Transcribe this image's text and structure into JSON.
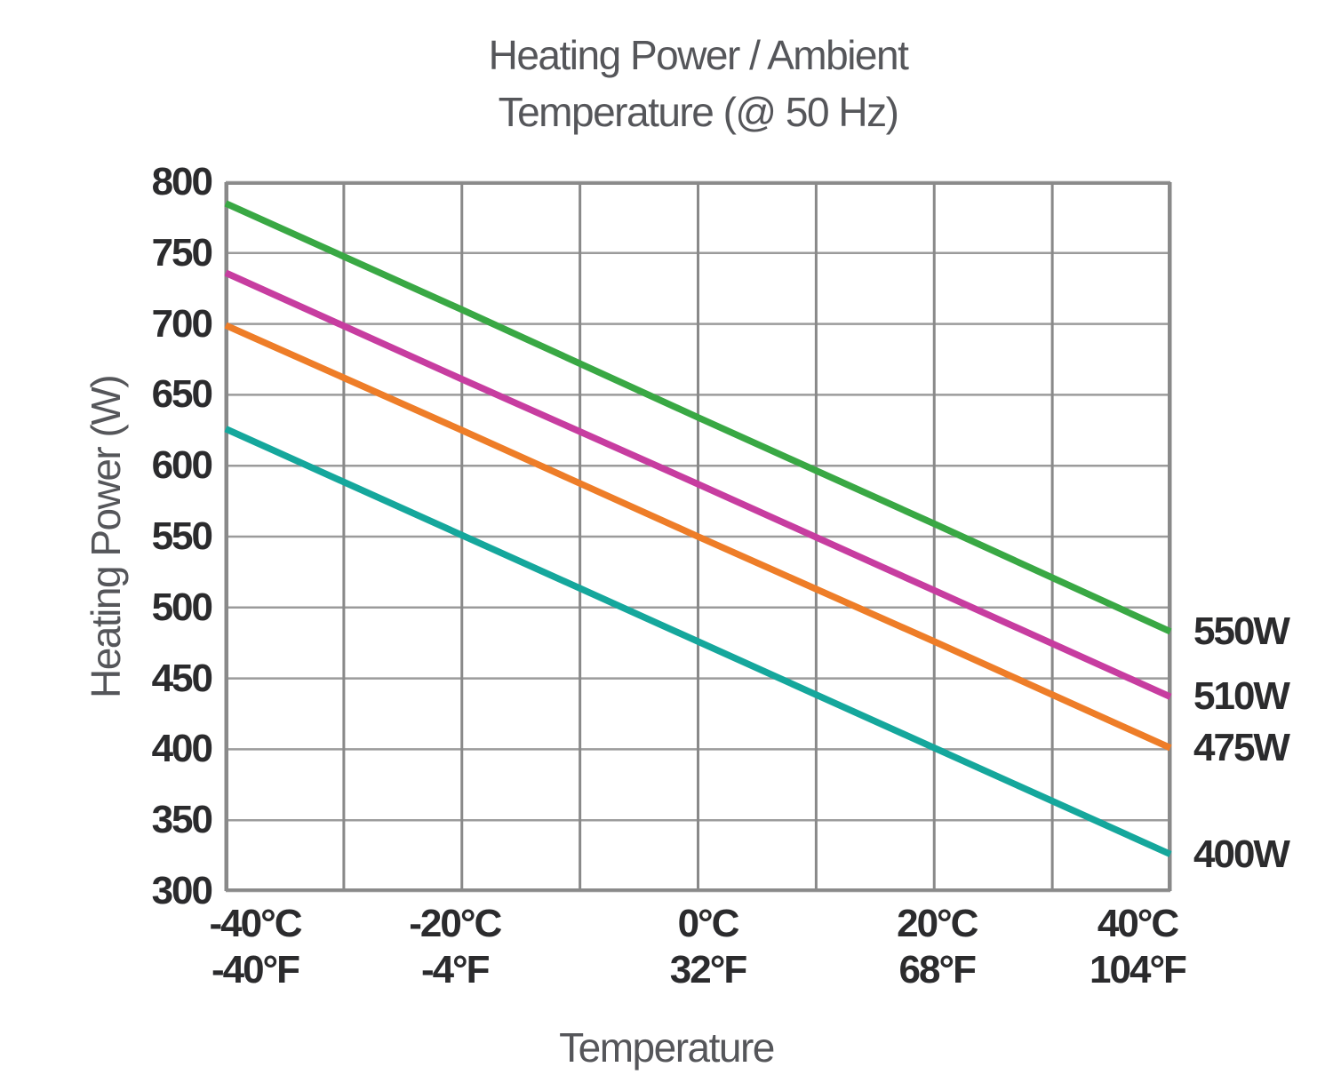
{
  "header": {
    "title_line1": "Heating Power / Ambient",
    "title_line2": "Temperature (@ 50 Hz)"
  },
  "chart_data": {
    "type": "line",
    "title": "Heating Power / Ambient Temperature (@ 50 Hz)",
    "xlabel": "Temperature",
    "ylabel": "Heating Power (W)",
    "xlim": [
      -40,
      40
    ],
    "ylim": [
      300,
      800
    ],
    "grid": true,
    "x_gridline_step_celsius": 10,
    "y_gridline_step_watts": 50,
    "x_ticks": [
      {
        "value": -40,
        "celsius": "-40°C",
        "fahrenheit": "-40°F"
      },
      {
        "value": -20,
        "celsius": "-20°C",
        "fahrenheit": "-4°F"
      },
      {
        "value": 0,
        "celsius": "0°C",
        "fahrenheit": "32°F"
      },
      {
        "value": 20,
        "celsius": "20°C",
        "fahrenheit": "68°F"
      },
      {
        "value": 40,
        "celsius": "40°C",
        "fahrenheit": "104°F"
      }
    ],
    "y_ticks": [
      800,
      750,
      700,
      650,
      600,
      550,
      500,
      450,
      400,
      350,
      300
    ],
    "x": [
      -40,
      -20,
      0,
      20,
      40
    ],
    "series": [
      {
        "name": "550W",
        "color": "#39a844",
        "values": [
          785,
          710,
          634,
          559,
          483
        ]
      },
      {
        "name": "510W",
        "color": "#c73da0",
        "values": [
          736,
          661,
          587,
          512,
          437
        ]
      },
      {
        "name": "475W",
        "color": "#ee7d28",
        "values": [
          699,
          625,
          550,
          476,
          401
        ]
      },
      {
        "name": "400W",
        "color": "#15a79c",
        "values": [
          626,
          551,
          476,
          401,
          326
        ]
      }
    ],
    "series_label_position": "right"
  },
  "colors": {
    "background": "#ffffff",
    "title_text": "#55565a",
    "tick_text": "#2b2b2d",
    "grid_horizontal": "#9b9b9b",
    "grid_vertical": "#898989",
    "plot_border": "#8a8a8a"
  }
}
